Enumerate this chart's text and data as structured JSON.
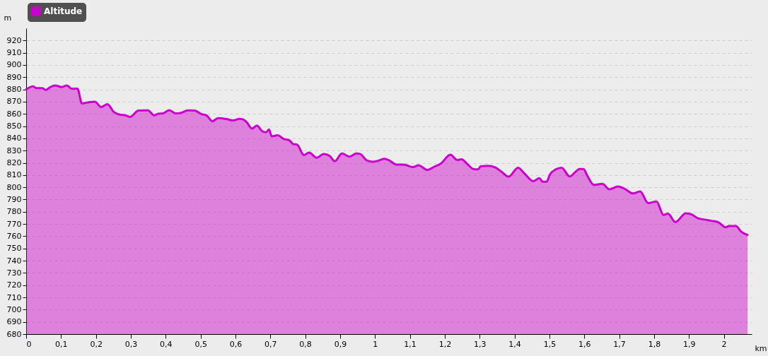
{
  "chart_data": {
    "type": "area",
    "xlabel": "km",
    "ylabel": "m",
    "x": [
      0,
      0.02,
      0.03,
      0.046,
      0.056,
      0.07,
      0.083,
      0.101,
      0.117,
      0.13,
      0.147,
      0.16,
      0.177,
      0.197,
      0.215,
      0.233,
      0.251,
      0.268,
      0.285,
      0.298,
      0.322,
      0.349,
      0.367,
      0.379,
      0.392,
      0.41,
      0.429,
      0.446,
      0.463,
      0.483,
      0.503,
      0.517,
      0.534,
      0.55,
      0.574,
      0.594,
      0.611,
      0.621,
      0.631,
      0.648,
      0.661,
      0.678,
      0.688,
      0.696,
      0.704,
      0.721,
      0.738,
      0.755,
      0.765,
      0.777,
      0.796,
      0.811,
      0.833,
      0.853,
      0.87,
      0.885,
      0.905,
      0.927,
      0.947,
      0.957,
      0.977,
      0.994,
      1.007,
      1.027,
      1.041,
      1.061,
      1.085,
      1.108,
      1.125,
      1.15,
      1.169,
      1.189,
      1.216,
      1.236,
      1.248,
      1.266,
      1.283,
      1.295,
      1.303,
      1.324,
      1.344,
      1.363,
      1.383,
      1.41,
      1.43,
      1.454,
      1.471,
      1.481,
      1.492,
      1.501,
      1.518,
      1.535,
      1.558,
      1.575,
      1.586,
      1.598,
      1.608,
      1.628,
      1.652,
      1.672,
      1.696,
      1.713,
      1.74,
      1.76,
      1.783,
      1.807,
      1.827,
      1.84,
      1.861,
      1.891,
      1.908,
      1.924,
      1.945,
      1.965,
      1.985,
      2.005,
      2.015,
      2.035,
      2.049,
      2.068
    ],
    "series": [
      {
        "name": "Altitude",
        "color": "#cc00cc",
        "values": [
          880,
          882.5,
          881,
          881,
          879.6,
          882,
          883.3,
          882,
          883.3,
          880.6,
          880.6,
          868.5,
          869.4,
          870,
          865.6,
          868,
          861.7,
          859.4,
          858.8,
          857.5,
          862.7,
          862.9,
          858.8,
          860.2,
          860.4,
          863,
          860.4,
          861,
          862.9,
          862.7,
          859.8,
          858.8,
          854,
          856.5,
          855.8,
          854.6,
          856,
          855.6,
          853.5,
          848,
          850.4,
          845.6,
          845,
          847.3,
          841.7,
          842.5,
          839.6,
          838.3,
          835.4,
          834.8,
          826.3,
          828.4,
          824.2,
          827.3,
          825.7,
          821.3,
          827.6,
          825.1,
          827.6,
          827.3,
          821.9,
          820.9,
          821.5,
          823.4,
          821.9,
          818.6,
          818.4,
          816.5,
          818,
          814.2,
          816.7,
          819.4,
          826.7,
          822.3,
          822.9,
          818.6,
          814.8,
          814.6,
          817.1,
          817.5,
          816.3,
          812.7,
          808.7,
          816,
          810.8,
          805,
          807.4,
          804.5,
          804.5,
          810.2,
          814.6,
          816,
          808.9,
          812.7,
          815,
          815,
          809.8,
          801.9,
          802.9,
          798.3,
          800.6,
          799.2,
          795,
          796.7,
          787.1,
          788.4,
          777.4,
          778.4,
          771.6,
          778.8,
          777.8,
          774.9,
          773.6,
          772.6,
          771.3,
          767.3,
          768.4,
          768.4,
          764,
          761.1
        ]
      }
    ],
    "xlim": [
      0,
      2.08
    ],
    "ylim": [
      680,
      930
    ],
    "xticks": [
      0,
      {
        "value": 0.1,
        "label": "0,1"
      },
      {
        "value": 0.2,
        "label": "0,2"
      },
      {
        "value": 0.3,
        "label": "0,3"
      },
      {
        "value": 0.4,
        "label": "0,4"
      },
      {
        "value": 0.5,
        "label": "0,5"
      },
      {
        "value": 0.6,
        "label": "0,6"
      },
      {
        "value": 0.7,
        "label": "0,7"
      },
      {
        "value": 0.8,
        "label": "0,8"
      },
      {
        "value": 0.9,
        "label": "0,9"
      },
      1,
      {
        "value": 1.1,
        "label": "1,1"
      },
      {
        "value": 1.2,
        "label": "1,2"
      },
      {
        "value": 1.3,
        "label": "1,3"
      },
      {
        "value": 1.4,
        "label": "1,4"
      },
      {
        "value": 1.5,
        "label": "1,5"
      },
      {
        "value": 1.6,
        "label": "1,6"
      },
      {
        "value": 1.7,
        "label": "1,7"
      },
      {
        "value": 1.8,
        "label": "1,8"
      },
      {
        "value": 1.9,
        "label": "1,9"
      },
      2
    ],
    "yticks": [
      680,
      690,
      700,
      710,
      720,
      730,
      740,
      750,
      760,
      770,
      780,
      790,
      800,
      810,
      820,
      830,
      840,
      850,
      860,
      870,
      880,
      890,
      900,
      910,
      920
    ],
    "grid": "y",
    "legend": "top left",
    "line_style": "solid",
    "marker": "none"
  }
}
